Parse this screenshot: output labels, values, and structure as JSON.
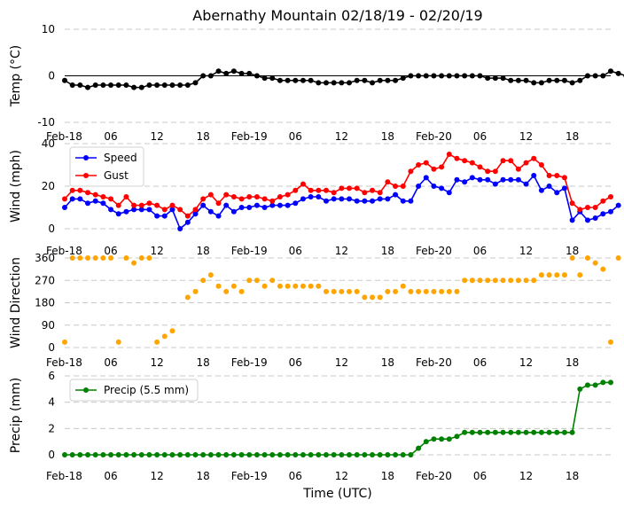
{
  "chart_data": [
    {
      "type": "line",
      "panel": "temp",
      "title": "Abernathy Mountain 02/18/19 - 02/20/19",
      "ylabel": "Temp ($^{\\circ}$C)",
      "ylabel_display": "Temp (°C)",
      "ylim": [
        -10,
        10
      ],
      "yticks": [
        10,
        0,
        -10
      ],
      "xlim": [
        0,
        71
      ],
      "xtick_positions": [
        0,
        6,
        12,
        18,
        24,
        30,
        36,
        42,
        48,
        54,
        60,
        66
      ],
      "xtick_labels": [
        "Feb-18",
        "06",
        "12",
        "18",
        "Feb-19",
        "06",
        "12",
        "18",
        "Feb-20",
        "06",
        "12",
        "18"
      ],
      "zero_line": true,
      "series": [
        {
          "name": "Temp",
          "color": "#000000",
          "values": [
            -1,
            -2,
            -2,
            -2.5,
            -2,
            -2,
            -2,
            -2,
            -2,
            -2.5,
            -2.5,
            -2,
            -2,
            -2,
            -2,
            -2,
            -2,
            -1.5,
            0,
            0,
            1,
            0.5,
            1,
            0.5,
            0.5,
            0,
            -0.5,
            -0.5,
            -1,
            -1,
            -1,
            -1,
            -1,
            -1.5,
            -1.5,
            -1.5,
            -1.5,
            -1.5,
            -1,
            -1,
            -1.5,
            -1,
            -1,
            -1,
            -0.5,
            0,
            0,
            0,
            0,
            0,
            0,
            0,
            0,
            0,
            0,
            -0.5,
            -0.5,
            -0.5,
            -1,
            -1,
            -1,
            -1.5,
            -1.5,
            -1,
            -1,
            -1,
            -1.5,
            -1,
            0,
            0,
            0,
            1,
            0.5,
            0
          ]
        }
      ]
    },
    {
      "type": "line",
      "panel": "wind",
      "ylabel": "Wind (mph)",
      "ylim": [
        0,
        40
      ],
      "yticks": [
        40,
        20,
        0
      ],
      "xlim": [
        0,
        71
      ],
      "xtick_positions": [
        0,
        6,
        12,
        18,
        24,
        30,
        36,
        42,
        48,
        54,
        60,
        66
      ],
      "xtick_labels": [
        "Feb-18",
        "06",
        "12",
        "18",
        "Feb-19",
        "06",
        "12",
        "18",
        "Feb-20",
        "06",
        "12",
        "18"
      ],
      "legend": "upper-left",
      "series": [
        {
          "name": "Speed",
          "color": "#0000ff",
          "values": [
            10,
            14,
            14,
            12,
            13,
            12,
            9,
            7,
            8,
            9,
            9,
            9,
            6,
            6,
            9,
            0,
            3,
            7,
            11,
            8,
            6,
            11,
            8,
            10,
            10,
            11,
            10,
            11,
            11,
            11,
            12,
            14,
            15,
            15,
            13,
            14,
            14,
            14,
            13,
            13,
            13,
            14,
            14,
            16,
            13,
            13,
            20,
            24,
            20,
            19,
            17,
            23,
            22,
            24,
            23,
            23,
            21,
            23,
            23,
            23,
            21,
            25,
            18,
            20,
            17,
            19,
            4,
            8,
            4,
            5,
            7,
            8,
            11
          ]
        },
        {
          "name": "Gust",
          "color": "#ff0000",
          "values": [
            14,
            18,
            18,
            17,
            16,
            15,
            14,
            11,
            15,
            11,
            11,
            12,
            11,
            9,
            11,
            9,
            6,
            9,
            14,
            16,
            12,
            16,
            15,
            14,
            15,
            15,
            14,
            13,
            15,
            16,
            18,
            21,
            18,
            18,
            18,
            17,
            19,
            19,
            19,
            17,
            18,
            17,
            22,
            20,
            20,
            27,
            30,
            31,
            28,
            29,
            35,
            33,
            32,
            31,
            29,
            27,
            27,
            32,
            32,
            28,
            31,
            33,
            30,
            25,
            25,
            24,
            12,
            9,
            10,
            10,
            13,
            15
          ]
        }
      ]
    },
    {
      "type": "scatter",
      "panel": "wind-direction",
      "ylabel": "Wind Direction",
      "ylim": [
        0,
        360
      ],
      "yticks": [
        360,
        270,
        180,
        90,
        0
      ],
      "xlim": [
        0,
        71
      ],
      "xtick_positions": [
        0,
        6,
        12,
        18,
        24,
        30,
        36,
        42,
        48,
        54,
        60,
        66
      ],
      "xtick_labels": [
        "Feb-18",
        "06",
        "12",
        "18",
        "Feb-19",
        "06",
        "12",
        "18",
        "Feb-20",
        "06",
        "12",
        "18"
      ],
      "series": [
        {
          "name": "Direction",
          "color": "#ffa500",
          "values": [
            22,
            360,
            360,
            360,
            360,
            360,
            360,
            22,
            360,
            340,
            360,
            360,
            22,
            45,
            67,
            null,
            202,
            225,
            270,
            292,
            247,
            225,
            247,
            225,
            270,
            270,
            247,
            270,
            247,
            247,
            247,
            247,
            247,
            247,
            225,
            225,
            225,
            225,
            225,
            202,
            202,
            202,
            225,
            225,
            247,
            225,
            225,
            225,
            225,
            225,
            225,
            225,
            270,
            270,
            270,
            270,
            270,
            270,
            270,
            270,
            270,
            270,
            292,
            292,
            292,
            292,
            360,
            292,
            360,
            340,
            315,
            22,
            360
          ]
        }
      ]
    },
    {
      "type": "line",
      "panel": "precip",
      "ylabel": "Precip (mm)",
      "xlabel": "Time (UTC)",
      "ylim": [
        0,
        6
      ],
      "yticks": [
        6,
        4,
        2,
        0
      ],
      "xlim": [
        0,
        71
      ],
      "xtick_positions": [
        0,
        6,
        12,
        18,
        24,
        30,
        36,
        42,
        48,
        54,
        60,
        66
      ],
      "xtick_labels": [
        "Feb-18",
        "06",
        "12",
        "18",
        "Feb-19",
        "06",
        "12",
        "18",
        "Feb-20",
        "06",
        "12",
        "18"
      ],
      "legend": "upper-left",
      "series": [
        {
          "name": "Precip (5.5 mm)",
          "color": "#008000",
          "values": [
            0,
            0,
            0,
            0,
            0,
            0,
            0,
            0,
            0,
            0,
            0,
            0,
            0,
            0,
            0,
            0,
            0,
            0,
            0,
            0,
            0,
            0,
            0,
            0,
            0,
            0,
            0,
            0,
            0,
            0,
            0,
            0,
            0,
            0,
            0,
            0,
            0,
            0,
            0,
            0,
            0,
            0,
            0,
            0,
            0,
            0,
            0.5,
            1,
            1.2,
            1.2,
            1.2,
            1.4,
            1.7,
            1.7,
            1.7,
            1.7,
            1.7,
            1.7,
            1.7,
            1.7,
            1.7,
            1.7,
            1.7,
            1.7,
            1.7,
            1.7,
            1.7,
            5,
            5.3,
            5.3,
            5.5,
            5.5
          ]
        }
      ]
    }
  ]
}
